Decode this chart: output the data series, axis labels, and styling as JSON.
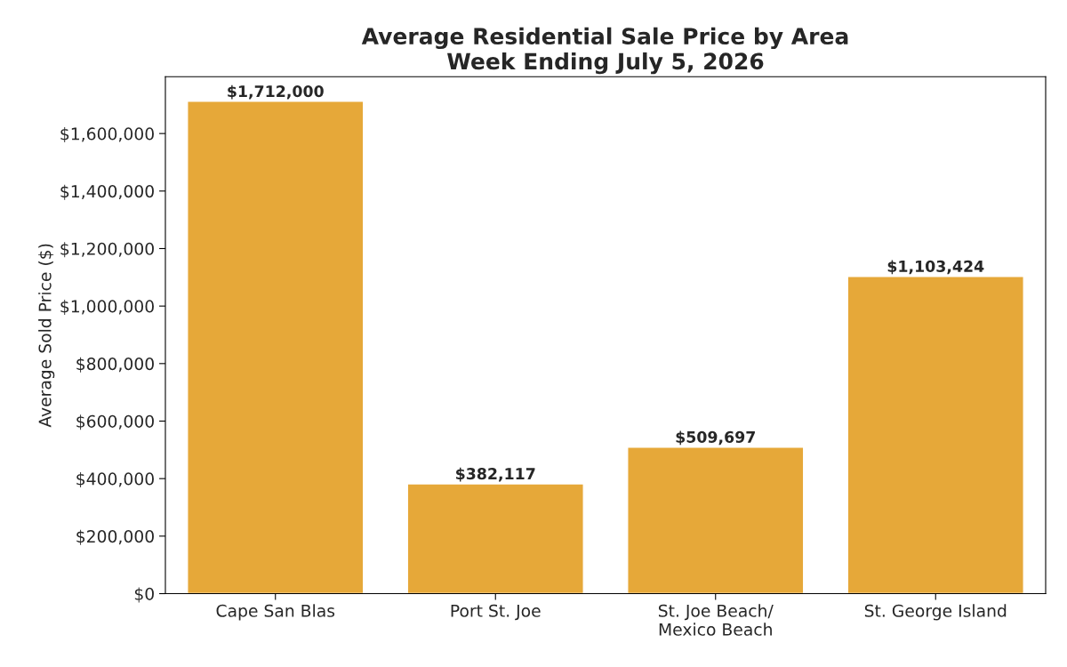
{
  "chart_data": {
    "type": "bar",
    "title": "Average Residential Sale Price by Area\nWeek Ending July 5, 2026",
    "ylabel": "Average Sold Price ($)",
    "categories": [
      "Cape San Blas",
      "Port St. Joe",
      "St. Joe Beach/\nMexico Beach",
      "St. George Island"
    ],
    "values": [
      1712000,
      382117,
      509697,
      1103424
    ],
    "color": "#e6a839",
    "value_labels": [
      "$1,712,000",
      "$382,117",
      "$509,697",
      "$1,103,424"
    ],
    "ylim": [
      0,
      1797600
    ],
    "yticks": [
      {
        "value": 0,
        "label": "$0"
      },
      {
        "value": 200000,
        "label": "$200,000"
      },
      {
        "value": 400000,
        "label": "$400,000"
      },
      {
        "value": 600000,
        "label": "$600,000"
      },
      {
        "value": 800000,
        "label": "$800,000"
      },
      {
        "value": 1000000,
        "label": "$1,000,000"
      },
      {
        "value": 1200000,
        "label": "$1,200,000"
      },
      {
        "value": 1400000,
        "label": "$1,400,000"
      },
      {
        "value": 1600000,
        "label": "$1,600,000"
      }
    ],
    "grid": false,
    "legend": false
  }
}
